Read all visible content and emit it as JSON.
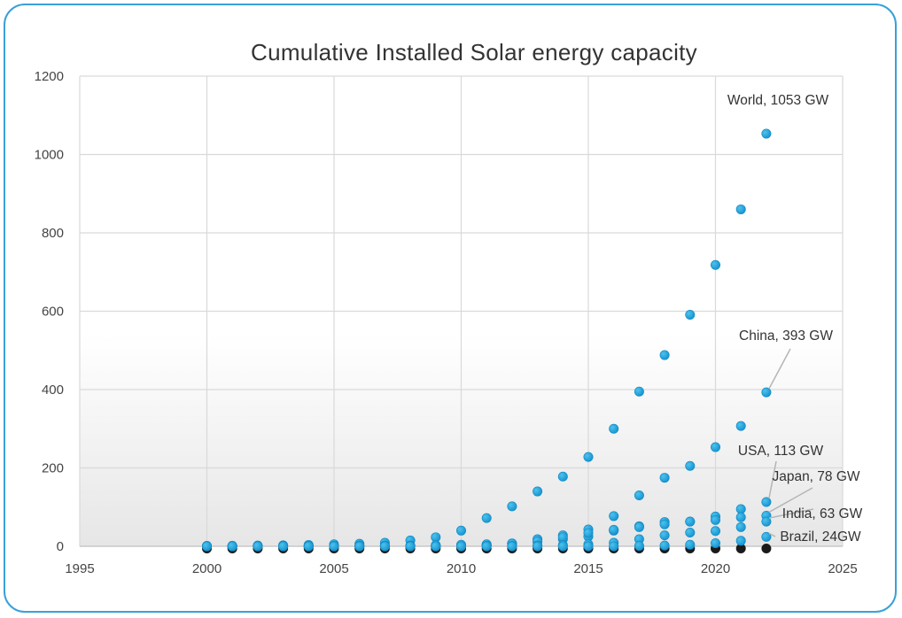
{
  "chart_data": {
    "type": "scatter",
    "title": "Cumulative Installed Solar energy capacity",
    "xlabel": "",
    "ylabel": "",
    "xlim": [
      1995,
      2025
    ],
    "ylim": [
      0,
      1200
    ],
    "xticks": [
      1995,
      2000,
      2005,
      2010,
      2015,
      2020,
      2025
    ],
    "yticks": [
      0,
      200,
      400,
      600,
      800,
      1000,
      1200
    ],
    "grid": true,
    "marker_color": "#1f9fd6",
    "baseline_color": "#1a1a1a",
    "series": [
      {
        "name": "World",
        "x": [
          2000,
          2001,
          2002,
          2003,
          2004,
          2005,
          2006,
          2007,
          2008,
          2009,
          2010,
          2011,
          2012,
          2013,
          2014,
          2015,
          2016,
          2017,
          2018,
          2019,
          2020,
          2021,
          2022
        ],
        "values": [
          1,
          1.5,
          2,
          2.5,
          3.5,
          5,
          6.5,
          9,
          15,
          23,
          40,
          72,
          102,
          140,
          178,
          228,
          300,
          395,
          488,
          591,
          718,
          860,
          1053
        ]
      },
      {
        "name": "China",
        "x": [
          2000,
          2001,
          2002,
          2003,
          2004,
          2005,
          2006,
          2007,
          2008,
          2009,
          2010,
          2011,
          2012,
          2013,
          2014,
          2015,
          2016,
          2017,
          2018,
          2019,
          2020,
          2021,
          2022
        ],
        "values": [
          0,
          0,
          0,
          0,
          0,
          0,
          0,
          0,
          0,
          0,
          1,
          3,
          7,
          18,
          28,
          43,
          77,
          130,
          175,
          205,
          253,
          307,
          393
        ]
      },
      {
        "name": "USA",
        "x": [
          2000,
          2001,
          2002,
          2003,
          2004,
          2005,
          2006,
          2007,
          2008,
          2009,
          2010,
          2011,
          2012,
          2013,
          2014,
          2015,
          2016,
          2017,
          2018,
          2019,
          2020,
          2021,
          2022
        ],
        "values": [
          0,
          0,
          0,
          0,
          0,
          0,
          0,
          0,
          1,
          1,
          2,
          4,
          7,
          12,
          18,
          25,
          40,
          51,
          62,
          63,
          76,
          95,
          113
        ]
      },
      {
        "name": "Japan",
        "x": [
          2000,
          2001,
          2002,
          2003,
          2004,
          2005,
          2006,
          2007,
          2008,
          2009,
          2010,
          2011,
          2012,
          2013,
          2014,
          2015,
          2016,
          2017,
          2018,
          2019,
          2020,
          2021,
          2022
        ],
        "values": [
          0,
          0,
          0,
          1,
          1,
          1,
          2,
          2,
          2,
          3,
          4,
          5,
          7,
          13,
          23,
          34,
          42,
          49,
          56,
          63,
          67,
          74,
          78
        ]
      },
      {
        "name": "India",
        "x": [
          2000,
          2001,
          2002,
          2003,
          2004,
          2005,
          2006,
          2007,
          2008,
          2009,
          2010,
          2011,
          2012,
          2013,
          2014,
          2015,
          2016,
          2017,
          2018,
          2019,
          2020,
          2021,
          2022
        ],
        "values": [
          0,
          0,
          0,
          0,
          0,
          0,
          0,
          0,
          0,
          0,
          0,
          1,
          1,
          2,
          3,
          5,
          9,
          18,
          28,
          35,
          39,
          49,
          63
        ]
      },
      {
        "name": "Brazil",
        "x": [
          2000,
          2001,
          2002,
          2003,
          2004,
          2005,
          2006,
          2007,
          2008,
          2009,
          2010,
          2011,
          2012,
          2013,
          2014,
          2015,
          2016,
          2017,
          2018,
          2019,
          2020,
          2021,
          2022
        ],
        "values": [
          0,
          0,
          0,
          0,
          0,
          0,
          0,
          0,
          0,
          0,
          0,
          0,
          0,
          0,
          0,
          0,
          0,
          1,
          2,
          4,
          8,
          14,
          24
        ]
      }
    ],
    "annotations": [
      {
        "series": "World",
        "text": "World, 1053 GW"
      },
      {
        "series": "China",
        "text": "China, 393 GW"
      },
      {
        "series": "USA",
        "text": "USA, 113 GW"
      },
      {
        "series": "Japan",
        "text": "Japan, 78 GW"
      },
      {
        "series": "India",
        "text": "India, 63 GW"
      },
      {
        "series": "Brazil",
        "text": "Brazil, 24GW"
      }
    ]
  }
}
